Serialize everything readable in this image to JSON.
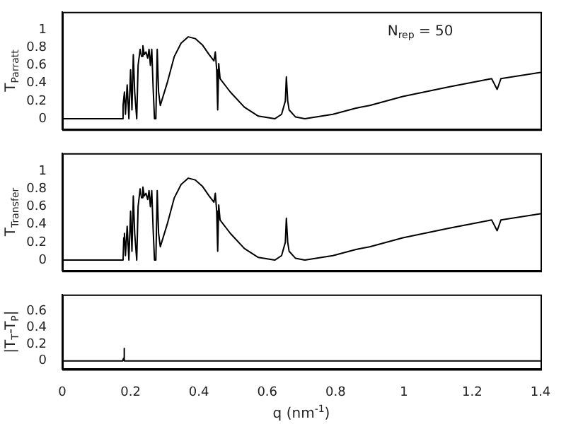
{
  "chart_data": [
    {
      "type": "line",
      "ylabel": "T$_{Parratt}$",
      "annotations": [
        "N$_{rep}$ = 50"
      ],
      "xlim": [
        0,
        1.4
      ],
      "xticks": [
        0,
        0.2,
        0.4,
        0.6,
        0.8,
        1,
        1.2,
        1.4
      ],
      "ylim": [
        -0.12,
        1.2
      ],
      "yticks": [
        0,
        0.2,
        0.4,
        0.6,
        0.8,
        1
      ],
      "tick_labels": "y",
      "marker": "none",
      "line_style": "solid",
      "x": [
        0,
        0.175,
        0.178,
        0.182,
        0.185,
        0.19,
        0.195,
        0.2,
        0.204,
        0.208,
        0.212,
        0.218,
        0.222,
        0.228,
        0.232,
        0.236,
        0.24,
        0.245,
        0.25,
        0.254,
        0.258,
        0.262,
        0.266,
        0.27,
        0.274,
        0.278,
        0.282,
        0.287,
        0.307,
        0.328,
        0.348,
        0.369,
        0.389,
        0.41,
        0.43,
        0.444,
        0.448,
        0.452,
        0.455,
        0.458,
        0.462,
        0.492,
        0.533,
        0.574,
        0.622,
        0.642,
        0.653,
        0.656,
        0.66,
        0.664,
        0.683,
        0.71,
        0.792,
        0.86,
        0.9,
        0.997,
        1.134,
        1.257,
        1.273,
        1.284,
        1.4
      ],
      "series": [
        {
          "color": "#000000",
          "values": [
            0,
            0,
            0.15,
            0.3,
            0.05,
            0.38,
            0,
            0.55,
            0.1,
            0.72,
            0.3,
            0,
            0.6,
            0.78,
            0.7,
            0.82,
            0.72,
            0.75,
            0.68,
            0.78,
            0.6,
            0.78,
            0.35,
            0,
            0,
            0.78,
            0.3,
            0.15,
            0.4,
            0.7,
            0.85,
            0.92,
            0.9,
            0.83,
            0.72,
            0.65,
            0.75,
            0.55,
            0.1,
            0.62,
            0.45,
            0.3,
            0.13,
            0.03,
            0,
            0.05,
            0.2,
            0.47,
            0.2,
            0.1,
            0.02,
            0,
            0.05,
            0.12,
            0.15,
            0.25,
            0.36,
            0.45,
            0.33,
            0.45,
            0.52
          ]
        }
      ]
    },
    {
      "type": "line",
      "ylabel": "T$_{Transfer}$",
      "xlim": [
        0,
        1.4
      ],
      "xticks": [
        0,
        0.2,
        0.4,
        0.6,
        0.8,
        1,
        1.2,
        1.4
      ],
      "ylim": [
        -0.12,
        1.2
      ],
      "yticks": [
        0,
        0.2,
        0.4,
        0.6,
        0.8,
        1
      ],
      "tick_labels": "y",
      "marker": "none",
      "line_style": "solid",
      "x": [
        0,
        0.178,
        0.18,
        0.182,
        0.185,
        0.19,
        0.195,
        0.2,
        0.204,
        0.208,
        0.212,
        0.218,
        0.222,
        0.228,
        0.232,
        0.236,
        0.24,
        0.245,
        0.25,
        0.254,
        0.258,
        0.262,
        0.266,
        0.27,
        0.274,
        0.278,
        0.282,
        0.287,
        0.307,
        0.328,
        0.348,
        0.369,
        0.389,
        0.41,
        0.43,
        0.444,
        0.448,
        0.452,
        0.455,
        0.458,
        0.462,
        0.492,
        0.533,
        0.574,
        0.622,
        0.642,
        0.653,
        0.656,
        0.66,
        0.664,
        0.683,
        0.71,
        0.792,
        0.86,
        0.9,
        0.997,
        1.134,
        1.257,
        1.273,
        1.284,
        1.4
      ],
      "series": [
        {
          "color": "#000000",
          "values": [
            0,
            0,
            0.25,
            0.3,
            0.05,
            0.38,
            0,
            0.55,
            0.1,
            0.72,
            0.3,
            0,
            0.6,
            0.8,
            0.7,
            0.82,
            0.72,
            0.75,
            0.68,
            0.78,
            0.6,
            0.78,
            0.35,
            0,
            0,
            0.78,
            0.3,
            0.15,
            0.4,
            0.7,
            0.85,
            0.92,
            0.9,
            0.83,
            0.72,
            0.65,
            0.75,
            0.55,
            0.1,
            0.62,
            0.45,
            0.3,
            0.13,
            0.03,
            0,
            0.05,
            0.2,
            0.47,
            0.2,
            0.1,
            0.02,
            0,
            0.05,
            0.12,
            0.15,
            0.25,
            0.36,
            0.45,
            0.33,
            0.45,
            0.52
          ]
        }
      ]
    },
    {
      "type": "line",
      "ylabel": "|T$_{T}$-T$_{P}$|",
      "xlabel": "q (nm$^{-1}$)",
      "xlim": [
        0,
        1.4
      ],
      "xticks": [
        0,
        0.2,
        0.4,
        0.6,
        0.8,
        1,
        1.2,
        1.4
      ],
      "ylim": [
        -0.1,
        0.8
      ],
      "yticks": [
        0,
        0.2,
        0.4,
        0.6
      ],
      "marker": "none",
      "line_style": "solid",
      "x": [
        0,
        0.177,
        0.179,
        0.181,
        0.182,
        1.4
      ],
      "series": [
        {
          "color": "#000000",
          "values": [
            0,
            0,
            0.03,
            0.15,
            0,
            0
          ]
        }
      ]
    }
  ]
}
